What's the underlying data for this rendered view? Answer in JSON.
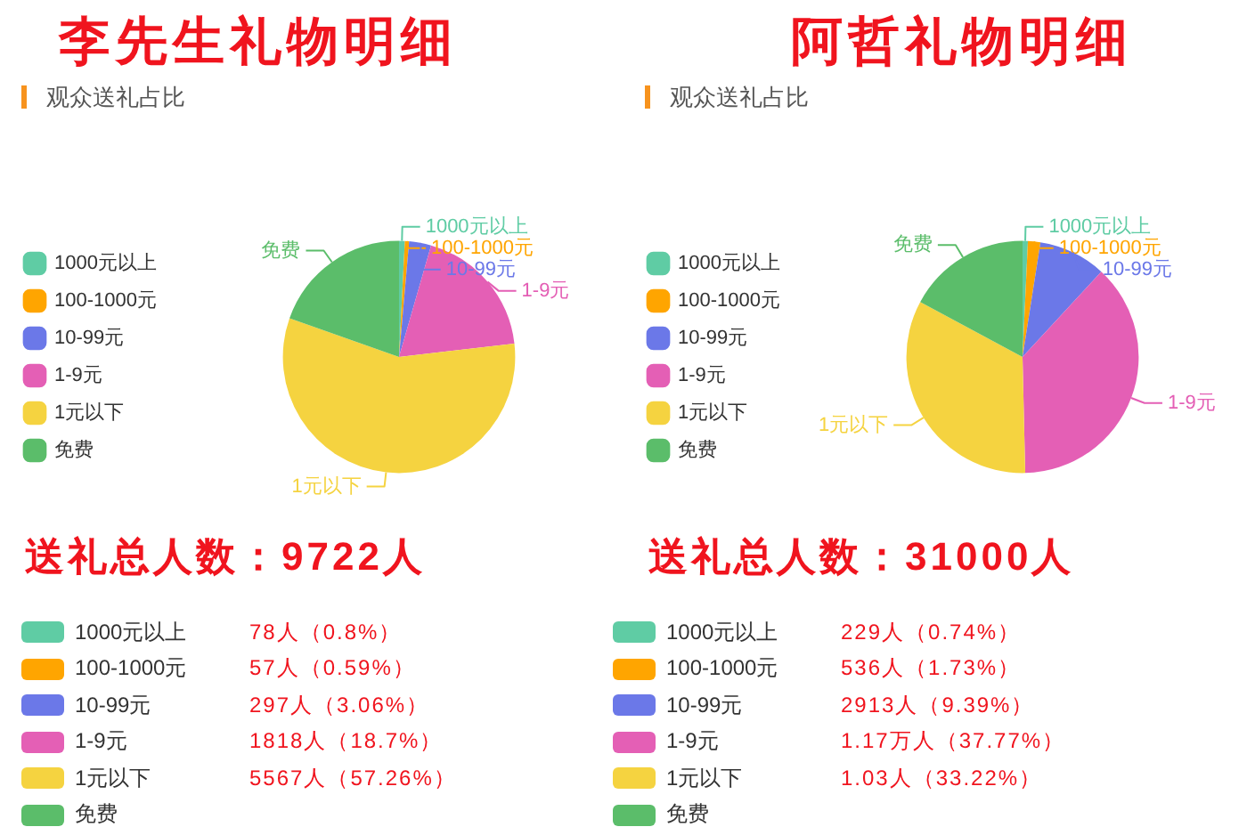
{
  "chart_data": [
    {
      "type": "pie",
      "title": "李先生礼物明细",
      "subtitle": "观众送礼占比",
      "categories": [
        "1000元以上",
        "100-1000元",
        "10-99元",
        "1-9元",
        "1元以下",
        "免费"
      ],
      "values": [
        0.8,
        0.59,
        3.06,
        18.7,
        57.26,
        19.59
      ],
      "colors": [
        "#5fcca4",
        "#ffa500",
        "#6b78e8",
        "#e45fb5",
        "#f5d340",
        "#5bbd6a"
      ],
      "legend": "left",
      "annotations": [
        "送礼总人数：9722人"
      ]
    },
    {
      "type": "pie",
      "title": "阿哲礼物明细",
      "subtitle": "观众送礼占比",
      "categories": [
        "1000元以上",
        "100-1000元",
        "10-99元",
        "1-9元",
        "1元以下",
        "免费"
      ],
      "values": [
        0.74,
        1.73,
        9.39,
        37.77,
        33.22,
        17.15
      ],
      "colors": [
        "#5fcca4",
        "#ffa500",
        "#6b78e8",
        "#e45fb5",
        "#f5d340",
        "#5bbd6a"
      ],
      "legend": "left",
      "annotations": [
        "送礼总人数：31000人"
      ]
    },
    {
      "type": "other",
      "categories": [
        "1000元以上",
        "100-1000元",
        "10-99元",
        "1-9元",
        "1元以下",
        "免费"
      ],
      "colors": [
        "#5fcca4",
        "#ffa500",
        "#6b78e8",
        "#e45fb5",
        "#f5d340",
        "#5bbd6a"
      ],
      "annotations": [
        "78人（0.8%）",
        "57人（0.59%）",
        "297人（3.06%）",
        "1818人（18.7%）",
        "5567人（57.26%）"
      ]
    },
    {
      "type": "other",
      "categories": [
        "1000元以上",
        "100-1000元",
        "10-99元",
        "1-9元",
        "1元以下",
        "免费"
      ],
      "colors": [
        "#5fcca4",
        "#ffa500",
        "#6b78e8",
        "#e45fb5",
        "#f5d340",
        "#5bbd6a"
      ],
      "annotations": [
        "229人（0.74%）",
        "536人（1.73%）",
        "2913人（9.39%）",
        "1.17万人（37.77%）",
        "1.03人（33.22%）"
      ]
    }
  ]
}
